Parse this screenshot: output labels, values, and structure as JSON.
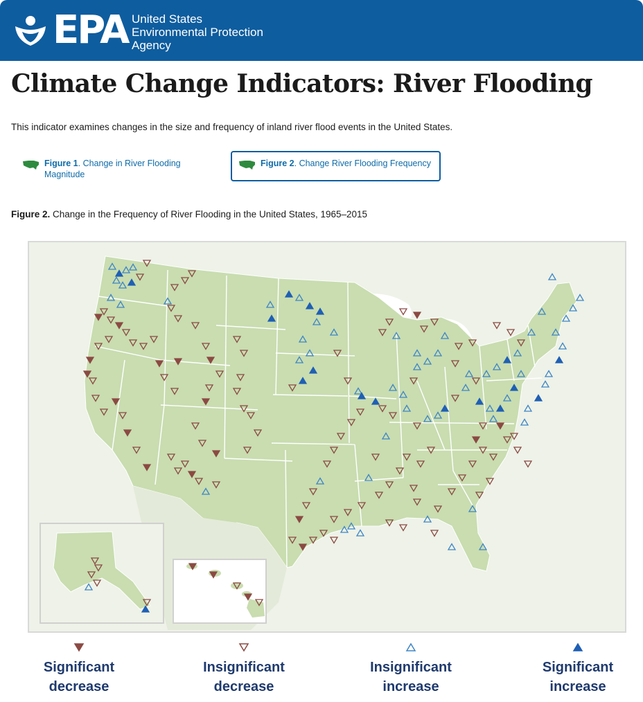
{
  "header": {
    "logo_text": "EPA",
    "agency_line1": "United States",
    "agency_line2": "Environmental Protection",
    "agency_line3": "Agency",
    "brand_color": "#0e5d9f"
  },
  "page_title": "Climate Change Indicators: River Flooding",
  "intro_text": "This indicator examines changes in the size and frequency of inland river flood events in the United States.",
  "figure_tabs": [
    {
      "label_bold": "Figure 1",
      "label_rest": ". Change in River Flooding Magnitude",
      "selected": false
    },
    {
      "label_bold": "Figure 2",
      "label_rest": ". Change River Flooding Frequency",
      "selected": true
    }
  ],
  "figure_caption": {
    "bold": "Figure 2.",
    "rest": " Change in the Frequency of River Flooding in the United States, 1965–2015"
  },
  "legend": [
    {
      "line1": "Significant",
      "line2": "decrease",
      "symbol": "down-filled",
      "color": "#8b4a43"
    },
    {
      "line1": "Insignificant",
      "line2": "decrease",
      "symbol": "down-outline",
      "color": "#8b4a43"
    },
    {
      "line1": "Insignificant",
      "line2": "increase",
      "symbol": "up-outline",
      "color": "#3f86c6"
    },
    {
      "line1": "Significant",
      "line2": "increase",
      "symbol": "up-filled",
      "color": "#1f5fb4"
    }
  ],
  "map_colors": {
    "land": "#c9ddb0",
    "background": "#eef2e8",
    "water": "#ffffff",
    "state_lines": "#ffffff",
    "decrease": "#8b4a43",
    "increase": "#3f86c6",
    "increase_filled": "#1f5fb4"
  }
}
